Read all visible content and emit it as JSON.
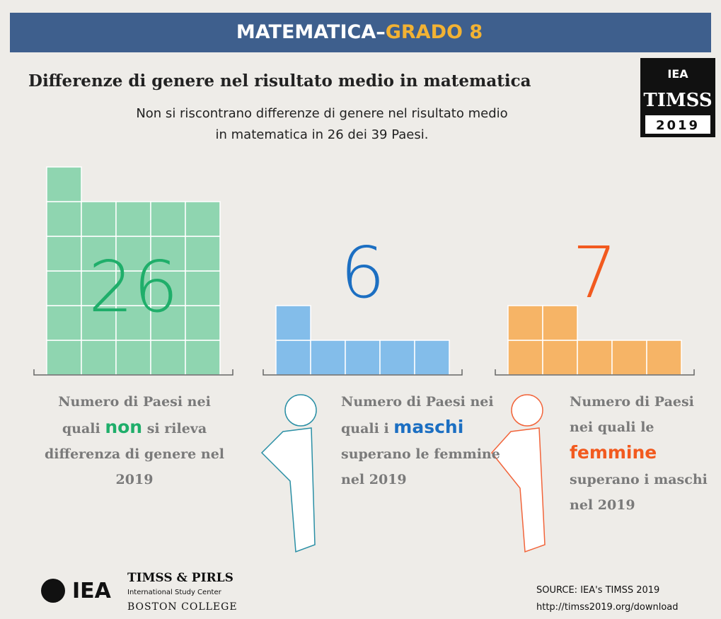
{
  "header": {
    "subject": "MATEMATICA–",
    "grade": "GRADO 8"
  },
  "title": "Differenze di genere nel risultato medio in matematica",
  "subtitle": [
    "Non si riscontrano differenze di genere nel risultato medio",
    "in matematica in 26 dei 39 Paesi."
  ],
  "logo": {
    "org": "IEA",
    "name": "TIMSS",
    "year": "2019"
  },
  "groups": [
    {
      "count": 26,
      "color": "#8fd5b0",
      "number_color": "#1fae6a",
      "before": "Numero di Paesi nei quali ",
      "emph": "non",
      "after": " si rileva differenza di genere nel 2019"
    },
    {
      "count": 6,
      "color": "#83bdea",
      "number_color": "#1c6fc2",
      "before": "Numero di Paesi nei quali i ",
      "emph": "maschi",
      "after": " superano le femmine nel 2019"
    },
    {
      "count": 7,
      "color": "#f6b466",
      "number_color": "#f25a1f",
      "before": "Numero di Paesi nei quali le ",
      "emph": "femmine",
      "after": " superano i maschi nel 2019"
    }
  ],
  "footer": {
    "org": "IEA",
    "center": "TIMSS & PIRLS",
    "center_sub": "International Study Center",
    "college": "BOSTON COLLEGE",
    "source": "SOURCE: IEA's TIMSS 2019",
    "url": "http://timss2019.org/download"
  }
}
